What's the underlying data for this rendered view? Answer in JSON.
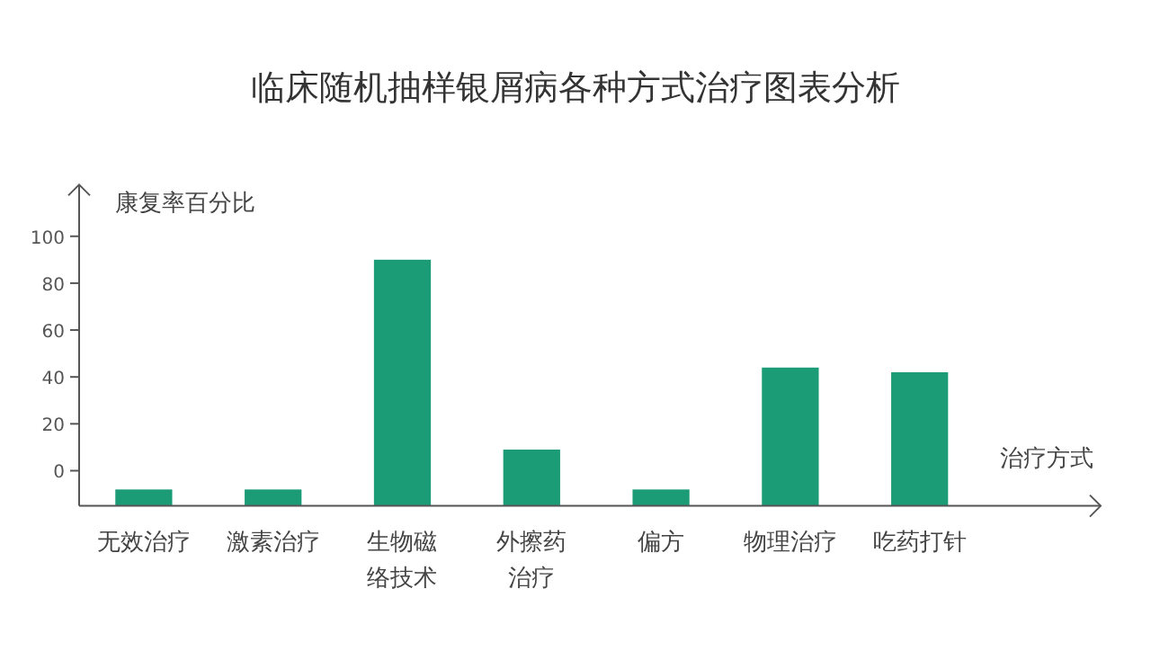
{
  "chart_data": {
    "type": "bar",
    "title": "临床随机抽样银屑病各种方式治疗图表分析",
    "xlabel": "治疗方式",
    "ylabel": "康复率百分比",
    "categories": [
      "无效治疗",
      "激素治疗",
      "生物磁络技术",
      "外擦药治疗",
      "偏方",
      "物理治疗",
      "吃药打针"
    ],
    "base": [
      -15,
      -15,
      -15,
      -15,
      -15,
      -15,
      -15
    ],
    "values": [
      7,
      7,
      105,
      24,
      7,
      59,
      57
    ],
    "color": "#1c9c76",
    "ylim": [
      -15,
      122
    ],
    "yticks": [
      0,
      20,
      40,
      60,
      80,
      100
    ]
  }
}
